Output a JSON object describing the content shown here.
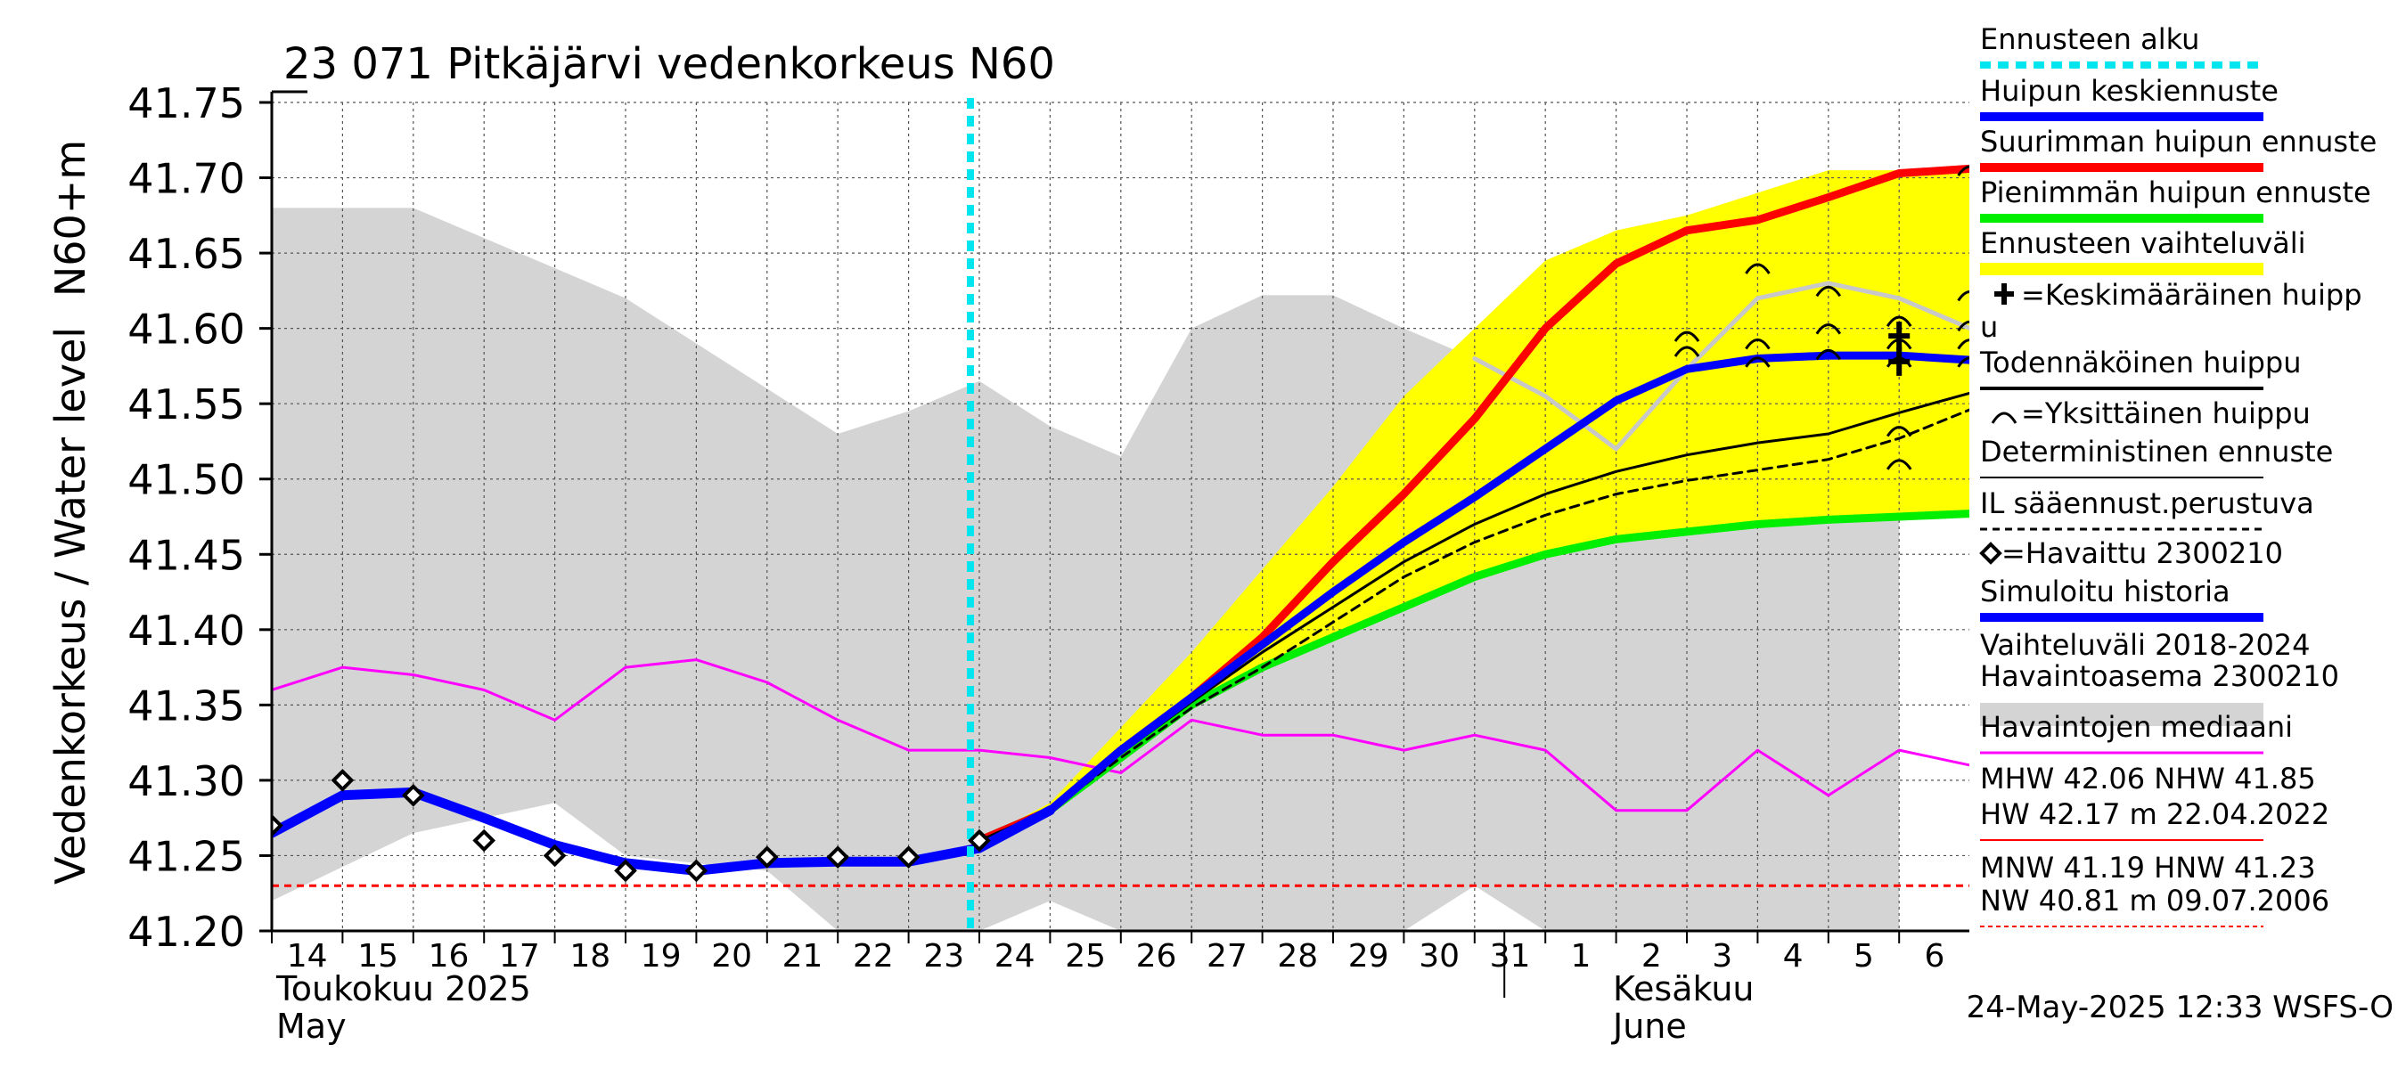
{
  "chart_data": {
    "type": "line",
    "title": "23 071 Pitkäjärvi vedenkorkeus N60",
    "ylabel_main": "Vedenkorkeus / Water level",
    "ylabel_unit": "N60+m",
    "ylim": [
      41.2,
      41.75
    ],
    "y_ticks": [
      "41.20",
      "41.25",
      "41.30",
      "41.35",
      "41.40",
      "41.45",
      "41.50",
      "41.55",
      "41.60",
      "41.65",
      "41.70",
      "41.75"
    ],
    "x_start": "2025-05-14",
    "x_end": "2025-06-06",
    "x_ticks": [
      "14",
      "15",
      "16",
      "17",
      "18",
      "19",
      "20",
      "21",
      "22",
      "23",
      "24",
      "25",
      "26",
      "27",
      "28",
      "29",
      "30",
      "31",
      "1",
      "2",
      "3",
      "4",
      "5",
      "6"
    ],
    "month_labels": [
      {
        "line1": "Toukokuu  2025",
        "line2": "May"
      },
      {
        "line1": "Kesäkuu",
        "line2": "June"
      }
    ],
    "footer": "24-May-2025 12:33 WSFS-O",
    "forecast_start": "2025-05-24",
    "reference_line": 41.23,
    "colors": {
      "history_band": "#d4d4d4",
      "forecast_band": "#ffff00",
      "median": "#ff00ff",
      "mean_peak": "#0000ff",
      "max_peak": "#ff0000",
      "min_peak": "#00ee00",
      "forecast_start": "#00e5ee",
      "reference": "#ff0000",
      "light_track": "#c8c8c8"
    },
    "history_band": {
      "x": [
        "2025-05-14",
        "2025-05-16",
        "2025-05-18",
        "2025-05-19",
        "2025-05-21",
        "2025-05-22",
        "2025-05-23",
        "2025-05-24",
        "2025-05-25",
        "2025-05-26",
        "2025-05-27",
        "2025-05-28",
        "2025-05-29",
        "2025-05-30",
        "2025-05-31",
        "2025-06-01",
        "2025-06-02",
        "2025-06-03",
        "2025-06-04",
        "2025-06-05",
        "2025-06-06"
      ],
      "upper": [
        41.68,
        41.68,
        41.64,
        41.62,
        41.56,
        41.53,
        41.545,
        41.565,
        41.535,
        41.515,
        41.6,
        41.622,
        41.622,
        41.6,
        41.58,
        41.55,
        41.52,
        41.57,
        41.6,
        41.6,
        41.6
      ],
      "lower": [
        41.22,
        41.265,
        41.285,
        41.25,
        41.24,
        41.2,
        41.2,
        41.2,
        41.22,
        41.2,
        41.2,
        41.2,
        41.2,
        41.2,
        41.23,
        41.2,
        41.2,
        41.2,
        41.2,
        41.2,
        41.2
      ]
    },
    "forecast_band": {
      "x": [
        "2025-05-24",
        "2025-05-25",
        "2025-05-26",
        "2025-05-27",
        "2025-05-28",
        "2025-05-29",
        "2025-05-30",
        "2025-05-31",
        "2025-06-01",
        "2025-06-02",
        "2025-06-03",
        "2025-06-04",
        "2025-06-05",
        "2025-06-06",
        "2025-06-07"
      ],
      "upper": [
        41.26,
        41.285,
        41.335,
        41.385,
        41.44,
        41.495,
        41.555,
        41.6,
        41.645,
        41.665,
        41.675,
        41.69,
        41.705,
        41.705,
        41.705
      ],
      "lower": [
        41.26,
        41.28,
        41.315,
        41.35,
        41.375,
        41.395,
        41.415,
        41.435,
        41.45,
        41.46,
        41.465,
        41.47,
        41.473,
        41.475,
        41.477
      ]
    },
    "series": [
      {
        "name": "Havaintojen mediaani",
        "x": [
          "2025-05-14",
          "2025-05-15",
          "2025-05-16",
          "2025-05-17",
          "2025-05-18",
          "2025-05-19",
          "2025-05-20",
          "2025-05-21",
          "2025-05-22",
          "2025-05-23",
          "2025-05-24",
          "2025-05-25",
          "2025-05-26",
          "2025-05-27",
          "2025-05-28",
          "2025-05-29",
          "2025-05-30",
          "2025-05-31",
          "2025-06-01",
          "2025-06-02",
          "2025-06-03",
          "2025-06-04",
          "2025-06-05",
          "2025-06-06",
          "2025-06-07"
        ],
        "y": [
          41.36,
          41.375,
          41.37,
          41.36,
          41.34,
          41.375,
          41.38,
          41.365,
          41.34,
          41.32,
          41.32,
          41.315,
          41.305,
          41.34,
          41.33,
          41.33,
          41.32,
          41.33,
          41.32,
          41.28,
          41.28,
          41.32,
          41.29,
          41.32,
          41.31
        ]
      },
      {
        "name": "Simuloitu historia",
        "x": [
          "2025-05-14",
          "2025-05-15",
          "2025-05-16",
          "2025-05-17",
          "2025-05-18",
          "2025-05-19",
          "2025-05-20",
          "2025-05-21",
          "2025-05-22",
          "2025-05-23",
          "2025-05-24",
          "2025-05-25"
        ],
        "y": [
          41.265,
          41.29,
          41.292,
          41.275,
          41.257,
          41.245,
          41.24,
          41.245,
          41.246,
          41.246,
          41.255,
          41.28
        ]
      },
      {
        "name": "Huipun keskiennuste",
        "x": [
          "2025-05-25",
          "2025-05-26",
          "2025-05-27",
          "2025-05-28",
          "2025-05-29",
          "2025-05-30",
          "2025-05-31",
          "2025-06-01",
          "2025-06-02",
          "2025-06-03",
          "2025-06-04",
          "2025-06-05",
          "2025-06-06",
          "2025-06-07"
        ],
        "y": [
          41.28,
          41.32,
          41.355,
          41.39,
          41.425,
          41.458,
          41.488,
          41.52,
          41.552,
          41.573,
          41.58,
          41.582,
          41.582,
          41.579
        ]
      },
      {
        "name": "Suurimman huipun ennuste",
        "x": [
          "2025-05-24",
          "2025-05-25",
          "2025-05-26",
          "2025-05-27",
          "2025-05-28",
          "2025-05-29",
          "2025-05-30",
          "2025-05-31",
          "2025-06-01",
          "2025-06-02",
          "2025-06-03",
          "2025-06-04",
          "2025-06-05",
          "2025-06-06",
          "2025-06-07"
        ],
        "y": [
          41.26,
          41.28,
          41.32,
          41.355,
          41.395,
          41.445,
          41.49,
          41.54,
          41.6,
          41.643,
          41.665,
          41.672,
          41.687,
          41.703,
          41.706
        ]
      },
      {
        "name": "Pienimmän huipun ennuste",
        "x": [
          "2025-05-24",
          "2025-05-25",
          "2025-05-26",
          "2025-05-27",
          "2025-05-28",
          "2025-05-29",
          "2025-05-30",
          "2025-05-31",
          "2025-06-01",
          "2025-06-02",
          "2025-06-03",
          "2025-06-04",
          "2025-06-05",
          "2025-06-06",
          "2025-06-07"
        ],
        "y": [
          41.26,
          41.28,
          41.315,
          41.35,
          41.375,
          41.395,
          41.415,
          41.435,
          41.45,
          41.46,
          41.465,
          41.47,
          41.473,
          41.475,
          41.477
        ]
      },
      {
        "name": "Todennäköinen huippu",
        "x": [
          "2025-05-24",
          "2025-05-25",
          "2025-05-26",
          "2025-05-27",
          "2025-05-28",
          "2025-05-29",
          "2025-05-30",
          "2025-05-31",
          "2025-06-01",
          "2025-06-02",
          "2025-06-03",
          "2025-06-04",
          "2025-06-05",
          "2025-06-06",
          "2025-06-07"
        ],
        "y": [
          41.26,
          41.28,
          41.318,
          41.352,
          41.385,
          41.415,
          41.445,
          41.47,
          41.49,
          41.505,
          41.516,
          41.524,
          41.53,
          41.544,
          41.557
        ]
      },
      {
        "name": "IL sääennust.perustuva",
        "x": [
          "2025-05-24",
          "2025-05-25",
          "2025-05-26",
          "2025-05-27",
          "2025-05-28",
          "2025-05-29",
          "2025-05-30",
          "2025-05-31",
          "2025-06-01",
          "2025-06-02",
          "2025-06-03",
          "2025-06-04",
          "2025-06-05",
          "2025-06-06",
          "2025-06-07"
        ],
        "y": [
          41.26,
          41.28,
          41.315,
          41.348,
          41.375,
          41.405,
          41.435,
          41.458,
          41.476,
          41.49,
          41.499,
          41.506,
          41.513,
          41.527,
          41.546
        ]
      },
      {
        "name": "",
        "x": [
          "2025-05-31",
          "2025-06-01",
          "2025-06-02",
          "2025-06-03",
          "2025-06-04",
          "2025-06-05",
          "2025-06-06",
          "2025-06-07"
        ],
        "y": [
          41.58,
          41.555,
          41.52,
          41.573,
          41.62,
          41.63,
          41.62,
          41.6
        ]
      }
    ],
    "observed": {
      "name": "Havaittu 2300210",
      "x": [
        "2025-05-14",
        "2025-05-15",
        "2025-05-16",
        "2025-05-17",
        "2025-05-18",
        "2025-05-19",
        "2025-05-20",
        "2025-05-21",
        "2025-05-22",
        "2025-05-23",
        "2025-05-24"
      ],
      "y": [
        41.27,
        41.3,
        41.29,
        41.26,
        41.25,
        41.24,
        41.24,
        41.249,
        41.249,
        41.249,
        41.26
      ]
    },
    "individual_peaks": {
      "x": [
        "2025-06-03",
        "2025-06-03",
        "2025-06-04",
        "2025-06-04",
        "2025-06-04",
        "2025-06-05",
        "2025-06-05",
        "2025-06-05",
        "2025-06-06",
        "2025-06-06",
        "2025-06-06",
        "2025-06-06",
        "2025-06-06",
        "2025-06-07",
        "2025-06-07",
        "2025-06-07",
        "2025-06-07",
        "2025-06-07"
      ],
      "y": [
        41.595,
        41.585,
        41.64,
        41.59,
        41.578,
        41.625,
        41.6,
        41.583,
        41.605,
        41.59,
        41.578,
        41.532,
        41.51,
        41.705,
        41.622,
        41.602,
        41.59,
        41.578
      ]
    },
    "mean_peaks": {
      "x": [
        "2025-06-06",
        "2025-06-06"
      ],
      "y": [
        41.595,
        41.578
      ]
    },
    "legend": [
      "Ennusteen alku",
      "Huipun keskiennuste",
      "Suurimman huipun ennuste",
      "Pienimmän huipun ennuste",
      "Ennusteen vaihteluväli",
      "=Keskimääräinen huipp",
      "u",
      "Todennäköinen huippu",
      "=Yksittäinen huippu",
      "Deterministinen ennuste",
      "IL sääennust.perustuva",
      "=Havaittu 2300210",
      "Simuloitu historia",
      "Vaihteluväli 2018-2024",
      " Havaintoasema 2300210",
      "Havaintojen mediaani",
      "MHW  42.06 NHW  41.85",
      "HW  42.17 m 22.04.2022",
      "MNW  41.19 HNW  41.23",
      "NW  40.81 m 09.07.2006"
    ]
  }
}
